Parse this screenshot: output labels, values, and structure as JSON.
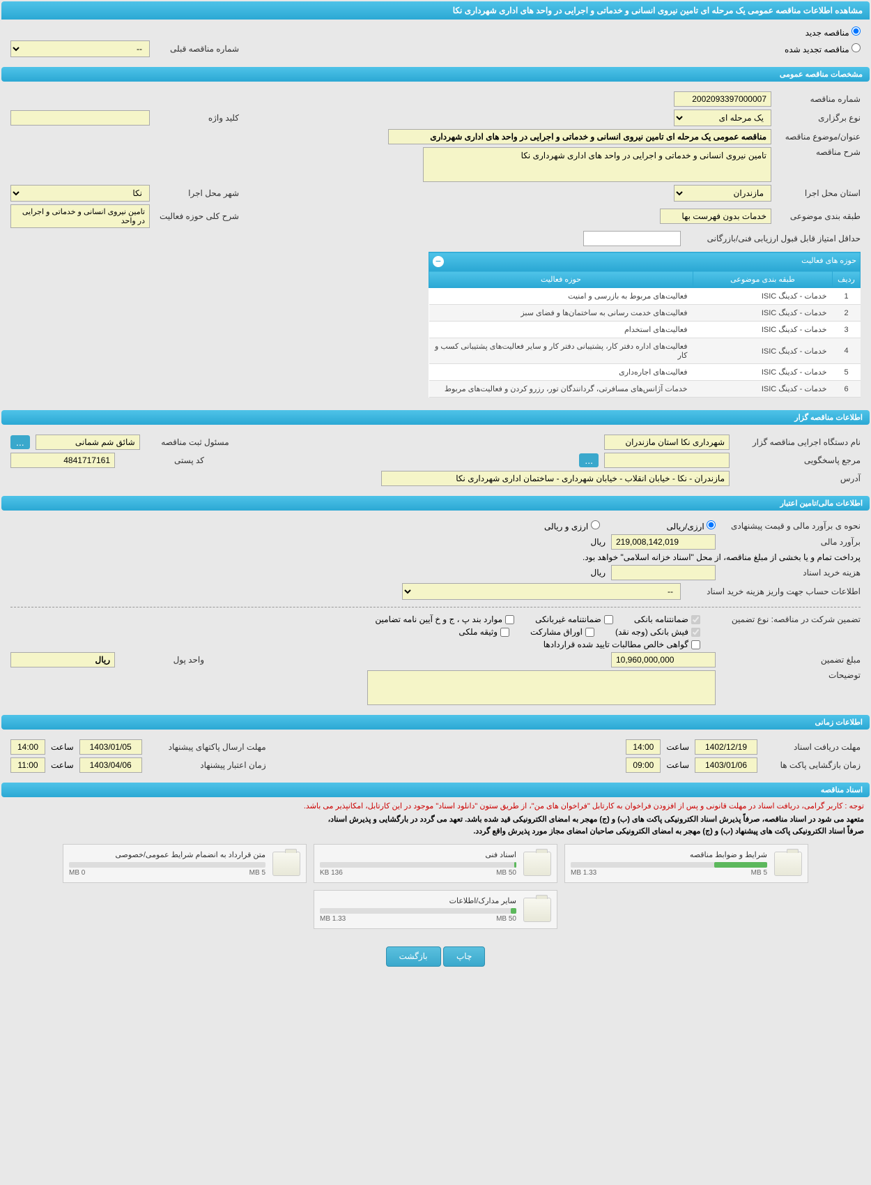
{
  "page_title": "مشاهده اطلاعات مناقصه عمومی یک مرحله ای تامین نیروی انسانی و خدماتی و اجرایی در واحد های اداری شهرداری نکا",
  "tender_type": {
    "new_label": "مناقصه جدید",
    "renewed_label": "مناقصه تجدید شده",
    "prev_number_label": "شماره مناقصه قبلی",
    "prev_number_value": "--"
  },
  "sections": {
    "general": "مشخصات مناقصه عمومی",
    "organizer": "اطلاعات مناقصه گزار",
    "financial": "اطلاعات مالی/تامین اعتبار",
    "time": "اطلاعات زمانی",
    "documents": "اسناد مناقصه"
  },
  "general": {
    "number_label": "شماره مناقصه",
    "number_value": "2002093397000007",
    "type_label": "نوع برگزاری",
    "type_value": "یک مرحله ای",
    "keyword_label": "کلید واژه",
    "keyword_value": "",
    "title_label": "عنوان/موضوع مناقصه",
    "title_value": "مناقصه عمومی یک مرحله ای تامین نیروی انسانی و خدماتی و اجرایی در واحد های اداری شهرداری",
    "desc_label": "شرح مناقصه",
    "desc_value": "تامین نیروی انسانی و خدماتی و اجرایی در واحد های اداری شهرداری نکا",
    "exec_province_label": "استان محل اجرا",
    "exec_province_value": "مازندران",
    "exec_city_label": "شهر محل اجرا",
    "exec_city_value": "نکا",
    "category_label": "طبقه بندی موضوعی",
    "category_value": "خدمات بدون فهرست بها",
    "activity_desc_label": "شرح کلی حوزه فعالیت",
    "activity_desc_value": "تامین نیروی انسانی و خدماتی و اجرایی در واحد",
    "min_score_label": "حداقل امتیاز قابل قبول ارزیابی فنی/بازرگانی"
  },
  "activity_table": {
    "title": "حوزه های فعالیت",
    "col_row": "ردیف",
    "col_category": "طبقه بندی موضوعی",
    "col_activity": "حوزه فعالیت",
    "rows": [
      {
        "n": "1",
        "cat": "خدمات - کدینگ ISIC",
        "act": "فعالیت‌های مربوط به بازرسی و امنیت"
      },
      {
        "n": "2",
        "cat": "خدمات - کدینگ ISIC",
        "act": "فعالیت‌های خدمت رسانی به ساختمان‌ها و فضای سبز"
      },
      {
        "n": "3",
        "cat": "خدمات - کدینگ ISIC",
        "act": "فعالیت‌های استخدام"
      },
      {
        "n": "4",
        "cat": "خدمات - کدینگ ISIC",
        "act": "فعالیت‌های اداره دفتر کار، پشتیبانی دفتر کار و سایر فعالیت‌های پشتیبانی کسب و کار"
      },
      {
        "n": "5",
        "cat": "خدمات - کدینگ ISIC",
        "act": "فعالیت‌های اجاره‌داری"
      },
      {
        "n": "6",
        "cat": "خدمات - کدینگ ISIC",
        "act": "خدمات آژانس‌های مسافرتی، گردانندگان تور، رزرو کردن و فعالیت‌های مربوط"
      }
    ]
  },
  "organizer": {
    "exec_label": "نام دستگاه اجرایی مناقصه گزار",
    "exec_value": "شهرداری نکا استان مازندران",
    "registrar_label": "مسئول ثبت مناقصه",
    "registrar_value": "شائق شم شمانی",
    "response_label": "مرجع پاسخگویی",
    "postal_label": "کد پستی",
    "postal_value": "4841717161",
    "address_label": "آدرس",
    "address_value": "مازندران - نکا - خیابان انقلاب - خیابان شهرداری - ساختمان اداری شهرداری نکا"
  },
  "financial": {
    "estimate_method_label": "نحوه ی برآورد مالی و قیمت پیشنهادی",
    "rial_label": "ارزی/ریالی",
    "forex_label": "ارزی و ریالی",
    "estimate_label": "برآورد مالی",
    "estimate_value": "219,008,142,019",
    "currency": "ریال",
    "payment_note": "پرداخت تمام و یا بخشی از مبلغ مناقصه، از محل \"اسناد خزانه اسلامی\" خواهد بود.",
    "doc_cost_label": "هزینه خرید اسناد",
    "account_label": "اطلاعات حساب جهت واریز هزینه خرید اسناد",
    "account_value": "--",
    "guarantee_type_label": "تضمین شرکت در مناقصه:   نوع تضمین",
    "gt_bank": "ضمانتنامه بانکی",
    "gt_nonbank": "ضمانتنامه غیربانکی",
    "gt_bonds": "موارد بند پ ، ج و خ آیین نامه تضامین",
    "gt_cash": "فیش بانکی (وجه نقد)",
    "gt_securities": "اوراق مشارکت",
    "gt_property": "وثیقه ملکی",
    "gt_receivables": "گواهی خالص مطالبات تایید شده قراردادها",
    "guarantee_amount_label": "مبلغ تضمین",
    "guarantee_amount_value": "10,960,000,000",
    "currency_unit_label": "واحد پول",
    "currency_unit_value": "ریال",
    "notes_label": "توضیحات"
  },
  "time": {
    "doc_deadline_label": "مهلت دریافت اسناد",
    "doc_deadline_date": "1402/12/19",
    "doc_deadline_time": "14:00",
    "submit_deadline_label": "مهلت ارسال پاکتهای پیشنهاد",
    "submit_deadline_date": "1403/01/05",
    "submit_deadline_time": "14:00",
    "open_label": "زمان بازگشایی پاکت ها",
    "open_date": "1403/01/06",
    "open_time": "09:00",
    "validity_label": "زمان اعتبار پیشنهاد",
    "validity_date": "1403/04/06",
    "validity_time": "11:00",
    "time_word": "ساعت"
  },
  "notices": {
    "red": "توجه : کاربر گرامی، دریافت اسناد در مهلت قانونی و پس از افزودن فراخوان به کارتابل \"فراخوان های من\"، از طریق ستون \"دانلود اسناد\" موجود در این کارتابل، امکانپذیر می باشد.",
    "black1": "متعهد می شود در اسناد مناقصه، صرفاً پذیرش اسناد الکترونیکی پاکت های (ب) و (ج) مهجر به امضای الکترونیکی قید شده باشد. تعهد می گردد در بارگشایی و پذیرش اسناد،",
    "black2": "صرفاً اسناد الکترونیکی پاکت های پیشنهاد (ب) و (ج) مهجر به امضای الکترونیکی صاحبان امضای مجاز مورد پذیرش واقع گردد."
  },
  "files": [
    {
      "title": "شرایط و ضوابط مناقصه",
      "used": "1.33 MB",
      "total": "5 MB",
      "pct": 27
    },
    {
      "title": "اسناد فنی",
      "used": "136 KB",
      "total": "50 MB",
      "pct": 1
    },
    {
      "title": "متن قرارداد به انضمام شرایط عمومی/خصوصی",
      "used": "0 MB",
      "total": "5 MB",
      "pct": 0
    },
    {
      "title": "سایر مدارک/اطلاعات",
      "used": "1.33 MB",
      "total": "50 MB",
      "pct": 3
    }
  ],
  "buttons": {
    "print": "چاپ",
    "back": "بازگشت",
    "more": "..."
  }
}
